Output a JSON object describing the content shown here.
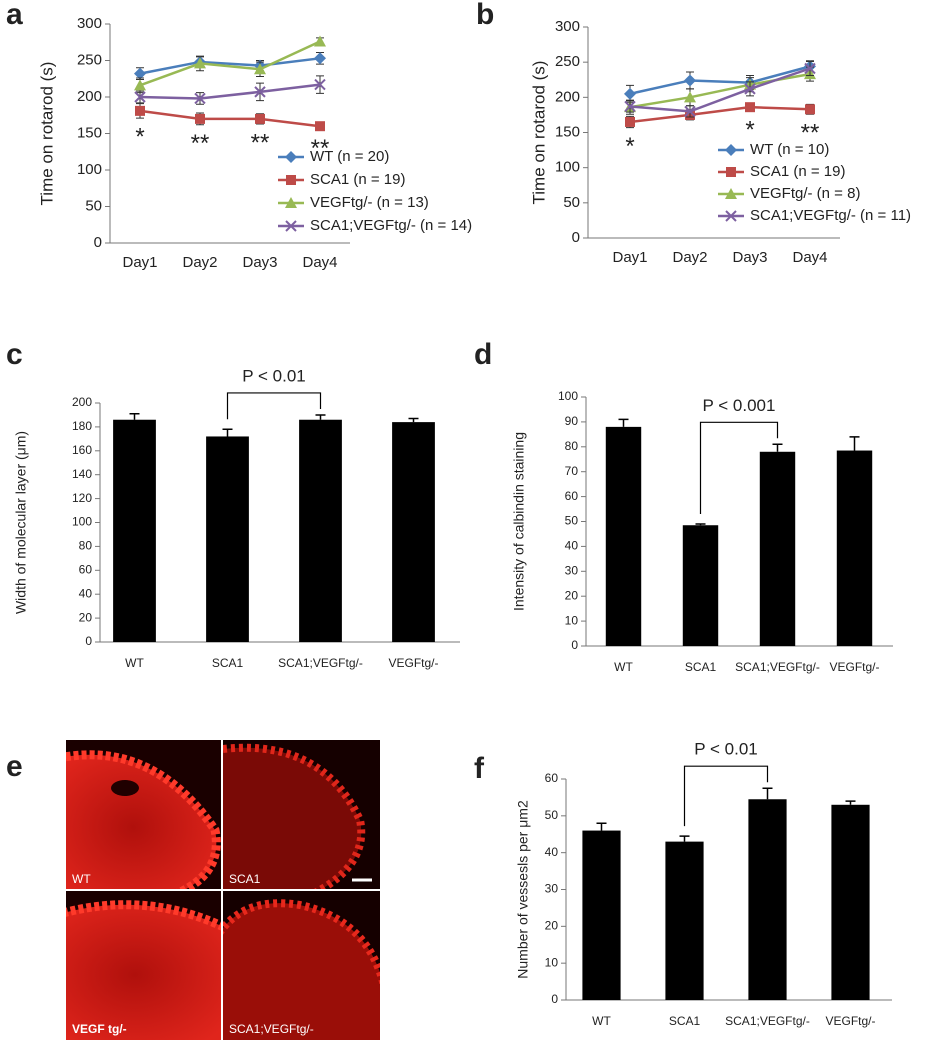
{
  "chart_data": [
    {
      "panel": "a",
      "type": "line",
      "y_label": "Time on rotarod (s)",
      "categories": [
        "Day1",
        "Day2",
        "Day3",
        "Day4"
      ],
      "ylim": [
        0,
        300
      ],
      "yticks": [
        0,
        50,
        100,
        150,
        200,
        250,
        300
      ],
      "series": [
        {
          "name": "WT (n = 20)",
          "color": "#4a7ebb",
          "marker": "diamond",
          "values": [
            232,
            248,
            243,
            253
          ],
          "errors": [
            8,
            7,
            7,
            8
          ]
        },
        {
          "name": "SCA1 (n = 19)",
          "color": "#be4b48",
          "marker": "square",
          "values": [
            181,
            170,
            170,
            160
          ],
          "errors": [
            10,
            8,
            7,
            5
          ]
        },
        {
          "name": "VEGFtg/- (n = 13)",
          "color": "#98b954",
          "marker": "triangle",
          "values": [
            216,
            246,
            238,
            276
          ],
          "errors": [
            10,
            10,
            10,
            5
          ]
        },
        {
          "name": "SCA1;VEGFtg/- (n = 14)",
          "color": "#7d60a0",
          "marker": "x",
          "values": [
            200,
            198,
            207,
            217
          ],
          "errors": [
            8,
            8,
            12,
            12
          ]
        }
      ],
      "significance": [
        "*",
        "**",
        "**",
        "**"
      ],
      "legend": "lower right"
    },
    {
      "panel": "b",
      "type": "line",
      "y_label": "Time on rotarod (s)",
      "categories": [
        "Day1",
        "Day2",
        "Day3",
        "Day4"
      ],
      "ylim": [
        0,
        300
      ],
      "yticks": [
        0,
        50,
        100,
        150,
        200,
        250,
        300
      ],
      "series": [
        {
          "name": "WT (n = 10)",
          "color": "#4a7ebb",
          "marker": "diamond",
          "values": [
            205,
            224,
            221,
            244
          ],
          "errors": [
            12,
            12,
            10,
            8
          ]
        },
        {
          "name": "SCA1 (n = 19)",
          "color": "#be4b48",
          "marker": "square",
          "values": [
            165,
            175,
            186,
            183
          ],
          "errors": [
            8,
            7,
            6,
            7
          ]
        },
        {
          "name": "VEGFtg/- (n = 8)",
          "color": "#98b954",
          "marker": "triangle",
          "values": [
            186,
            200,
            218,
            233
          ],
          "errors": [
            10,
            12,
            10,
            10
          ]
        },
        {
          "name": "SCA1;VEGFtg/- (n = 11)",
          "color": "#7d60a0",
          "marker": "x",
          "values": [
            187,
            180,
            212,
            241
          ],
          "errors": [
            8,
            8,
            10,
            10
          ]
        }
      ],
      "significance": [
        "*",
        null,
        "*",
        "**"
      ],
      "legend": "lower right"
    },
    {
      "panel": "c",
      "type": "bar",
      "y_label": "Width of molecular layer (μm)",
      "categories": [
        "WT",
        "SCA1",
        "SCA1;VEGFtg/-",
        "VEGFtg/-"
      ],
      "values": [
        186,
        172,
        186,
        184
      ],
      "errors": [
        5,
        6,
        4,
        3
      ],
      "color": "#000000",
      "ylim": [
        0,
        200
      ],
      "yticks": [
        0,
        20,
        40,
        60,
        80,
        100,
        120,
        140,
        160,
        180,
        200
      ],
      "annotation": {
        "text": "P < 0.01",
        "between": [
          "SCA1",
          "SCA1;VEGFtg/-"
        ]
      }
    },
    {
      "panel": "d",
      "type": "bar",
      "y_label": "Intensity of calbindin staining",
      "categories": [
        "WT",
        "SCA1",
        "SCA1;VEGFtg/-",
        "VEGFtg/-"
      ],
      "values": [
        88,
        48.5,
        78,
        78.5
      ],
      "errors": [
        3,
        0.5,
        3,
        5.5
      ],
      "color": "#000000",
      "ylim": [
        0,
        100
      ],
      "yticks": [
        0,
        10,
        20,
        30,
        40,
        50,
        60,
        70,
        80,
        90,
        100
      ],
      "annotation": {
        "text": "P < 0.001",
        "between": [
          "SCA1",
          "SCA1;VEGFtg/-"
        ]
      }
    },
    {
      "panel": "e",
      "type": "image",
      "labels": [
        "WT",
        "SCA1",
        "VEGF tg/-",
        "SCA1;VEGFtg/-"
      ]
    },
    {
      "panel": "f",
      "type": "bar",
      "y_label": "Number of vessesls per μm2",
      "categories": [
        "WT",
        "SCA1",
        "SCA1;VEGFtg/-",
        "VEGFtg/-"
      ],
      "values": [
        46,
        43,
        54.5,
        53
      ],
      "errors": [
        2,
        1.5,
        3,
        1
      ],
      "color": "#000000",
      "ylim": [
        0,
        60
      ],
      "yticks": [
        0,
        10,
        20,
        30,
        40,
        50,
        60
      ],
      "annotation": {
        "text": "P < 0.01",
        "between": [
          "SCA1",
          "SCA1;VEGFtg/-"
        ]
      }
    }
  ]
}
